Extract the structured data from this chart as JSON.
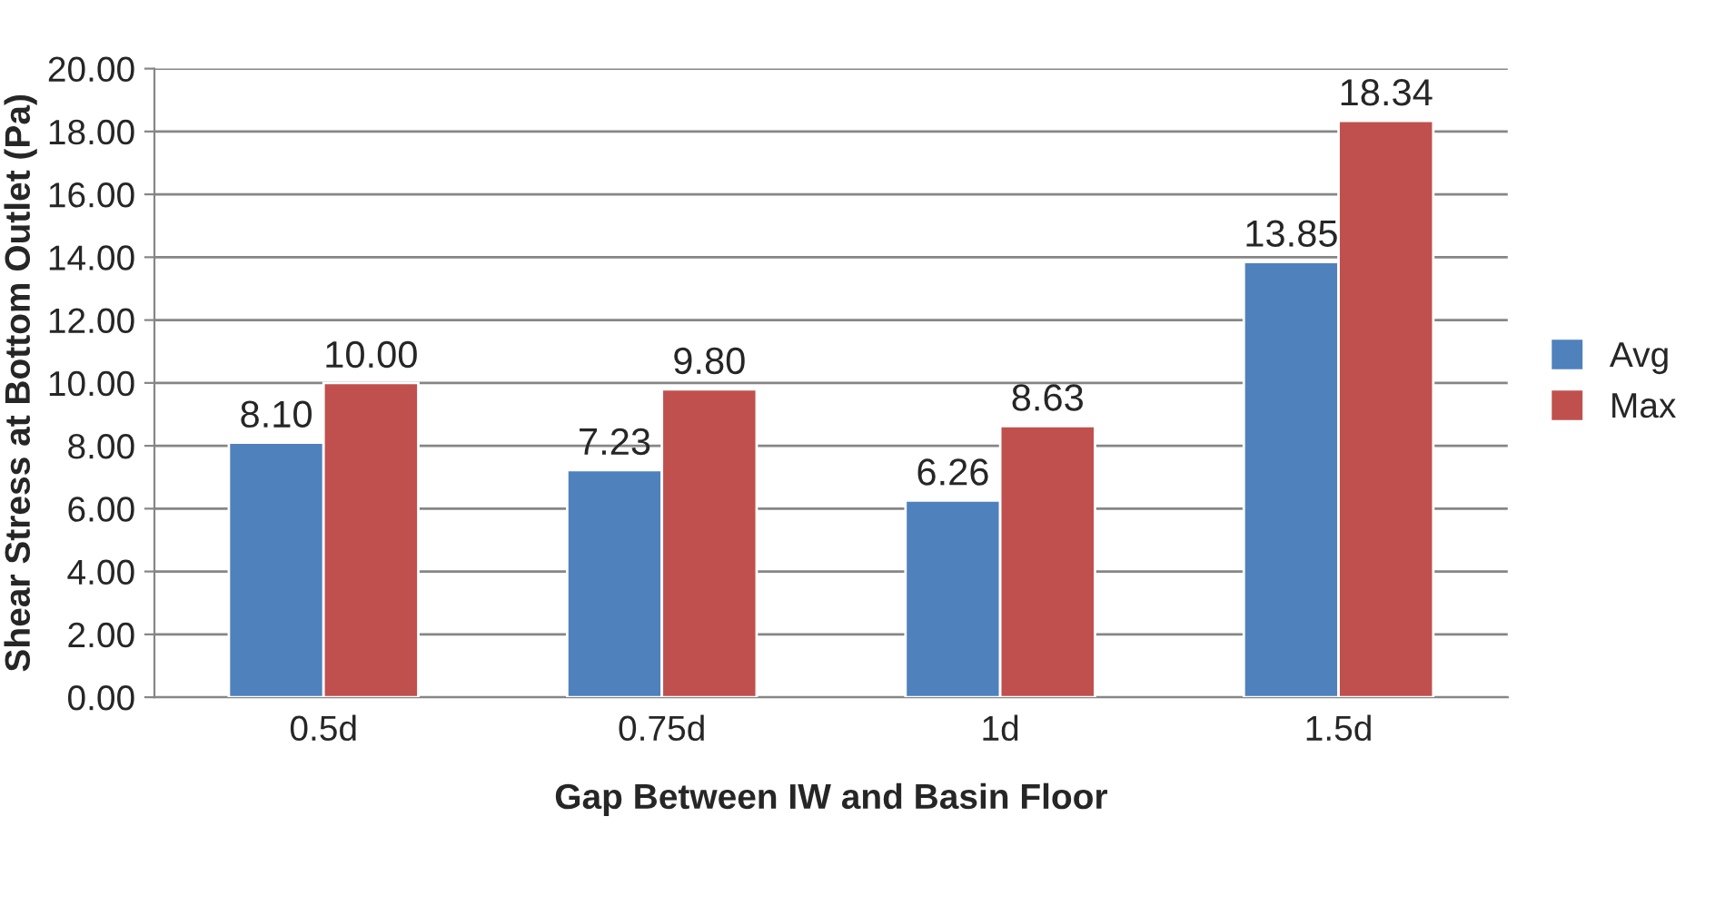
{
  "chart_data": {
    "type": "bar",
    "xlabel": "Gap Between IW and Basin Floor",
    "ylabel": "Shear Stress at Bottom Outlet (Pa)",
    "categories": [
      "0.5d",
      "0.75d",
      "1d",
      "1.5d"
    ],
    "series": [
      {
        "name": "Avg",
        "color": "#4f81bd",
        "values": [
          8.1,
          7.23,
          6.26,
          13.85
        ],
        "value_labels": [
          "8.10",
          "7.23",
          "6.26",
          "13.85"
        ]
      },
      {
        "name": "Max",
        "color": "#c0504d",
        "values": [
          10.0,
          9.8,
          8.63,
          18.34
        ],
        "value_labels": [
          "10.00",
          "9.80",
          "8.63",
          "18.34"
        ]
      }
    ],
    "ylim": [
      0,
      20
    ],
    "yticks": [
      {
        "value": 0,
        "label": "0.00"
      },
      {
        "value": 2,
        "label": "2.00"
      },
      {
        "value": 4,
        "label": "4.00"
      },
      {
        "value": 6,
        "label": "6.00"
      },
      {
        "value": 8,
        "label": "8.00"
      },
      {
        "value": 10,
        "label": "10.00"
      },
      {
        "value": 12,
        "label": "12.00"
      },
      {
        "value": 14,
        "label": "14.00"
      },
      {
        "value": 16,
        "label": "16.00"
      },
      {
        "value": 18,
        "label": "18.00"
      },
      {
        "value": 20,
        "label": "20.00"
      }
    ],
    "grid": "y",
    "legend": "right"
  }
}
